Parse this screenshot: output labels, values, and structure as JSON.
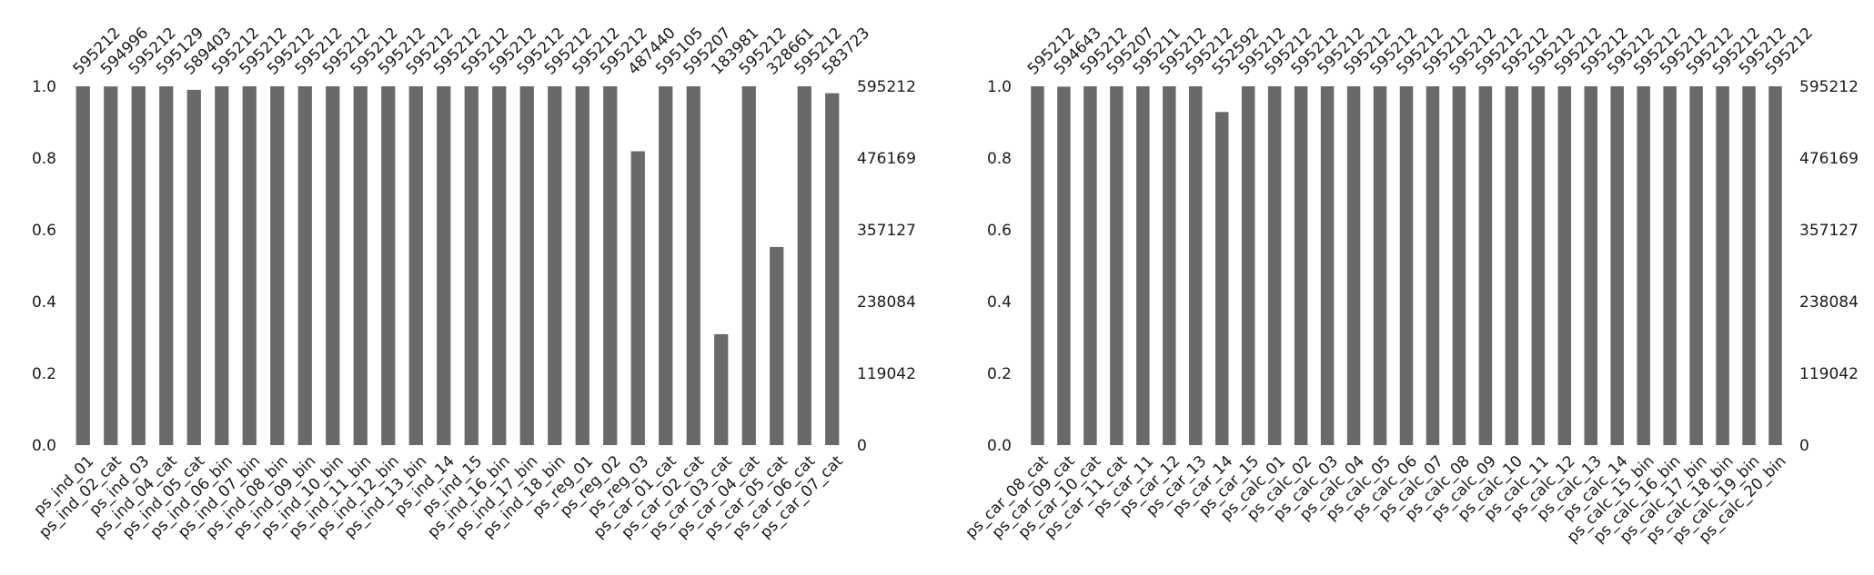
{
  "colors": {
    "bar": "#696969",
    "axis": "#000000",
    "text": "#1a1a1a",
    "background": "#ffffff"
  },
  "chart_data": [
    {
      "type": "bar",
      "title": "",
      "xlabel": "",
      "ylabel": "",
      "ylim": [
        0,
        1
      ],
      "left_ticks": [
        "0.0",
        "0.2",
        "0.4",
        "0.6",
        "0.8",
        "1.0"
      ],
      "right_ticks": [
        "0",
        "119042",
        "238084",
        "357127",
        "476169",
        "595212"
      ],
      "grid": false,
      "categories": [
        "ps_ind_01",
        "ps_ind_02_cat",
        "ps_ind_03",
        "ps_ind_04_cat",
        "ps_ind_05_cat",
        "ps_ind_06_bin",
        "ps_ind_07_bin",
        "ps_ind_08_bin",
        "ps_ind_09_bin",
        "ps_ind_10_bin",
        "ps_ind_11_bin",
        "ps_ind_12_bin",
        "ps_ind_13_bin",
        "ps_ind_14",
        "ps_ind_15",
        "ps_ind_16_bin",
        "ps_ind_17_bin",
        "ps_ind_18_bin",
        "ps_reg_01",
        "ps_reg_02",
        "ps_reg_03",
        "ps_car_01_cat",
        "ps_car_02_cat",
        "ps_car_03_cat",
        "ps_car_04_cat",
        "ps_car_05_cat",
        "ps_car_06_cat",
        "ps_car_07_cat"
      ],
      "values": [
        595212,
        594996,
        595212,
        595129,
        589403,
        595212,
        595212,
        595212,
        595212,
        595212,
        595212,
        595212,
        595212,
        595212,
        595212,
        595212,
        595212,
        595212,
        595212,
        595212,
        487440,
        595105,
        595207,
        183981,
        595212,
        328661,
        595212,
        583723
      ],
      "value_labels": [
        "595212",
        "594996",
        "595212",
        "595129",
        "589403",
        "595212",
        "595212",
        "595212",
        "595212",
        "595212",
        "595212",
        "595212",
        "595212",
        "595212",
        "595212",
        "595212",
        "595212",
        "595212",
        "595212",
        "595212",
        "487440",
        "595105",
        "595207",
        "183981",
        "595212",
        "328661",
        "595212",
        "583723"
      ],
      "total": 595212
    },
    {
      "type": "bar",
      "title": "",
      "xlabel": "",
      "ylabel": "",
      "ylim": [
        0,
        1
      ],
      "left_ticks": [
        "0.0",
        "0.2",
        "0.4",
        "0.6",
        "0.8",
        "1.0"
      ],
      "right_ticks": [
        "0",
        "119042",
        "238084",
        "357127",
        "476169",
        "595212"
      ],
      "grid": false,
      "categories": [
        "ps_car_08_cat",
        "ps_car_09_cat",
        "ps_car_10_cat",
        "ps_car_11_cat",
        "ps_car_11",
        "ps_car_12",
        "ps_car_13",
        "ps_car_14",
        "ps_car_15",
        "ps_calc_01",
        "ps_calc_02",
        "ps_calc_03",
        "ps_calc_04",
        "ps_calc_05",
        "ps_calc_06",
        "ps_calc_07",
        "ps_calc_08",
        "ps_calc_09",
        "ps_calc_10",
        "ps_calc_11",
        "ps_calc_12",
        "ps_calc_13",
        "ps_calc_14",
        "ps_calc_15_bin",
        "ps_calc_16_bin",
        "ps_calc_17_bin",
        "ps_calc_18_bin",
        "ps_calc_19_bin",
        "ps_calc_20_bin"
      ],
      "values": [
        595212,
        594643,
        595212,
        595207,
        595211,
        595212,
        595212,
        552592,
        595212,
        595212,
        595212,
        595212,
        595212,
        595212,
        595212,
        595212,
        595212,
        595212,
        595212,
        595212,
        595212,
        595212,
        595212,
        595212,
        595212,
        595212,
        595212,
        595212,
        595212
      ],
      "value_labels": [
        "595212",
        "594643",
        "595212",
        "595207",
        "595211",
        "595212",
        "595212",
        "552592",
        "595212",
        "595212",
        "595212",
        "595212",
        "595212",
        "595212",
        "595212",
        "595212",
        "595212",
        "595212",
        "595212",
        "595212",
        "595212",
        "595212",
        "595212",
        "595212",
        "595212",
        "595212",
        "595212",
        "595212",
        "595212"
      ],
      "total": 595212
    }
  ]
}
